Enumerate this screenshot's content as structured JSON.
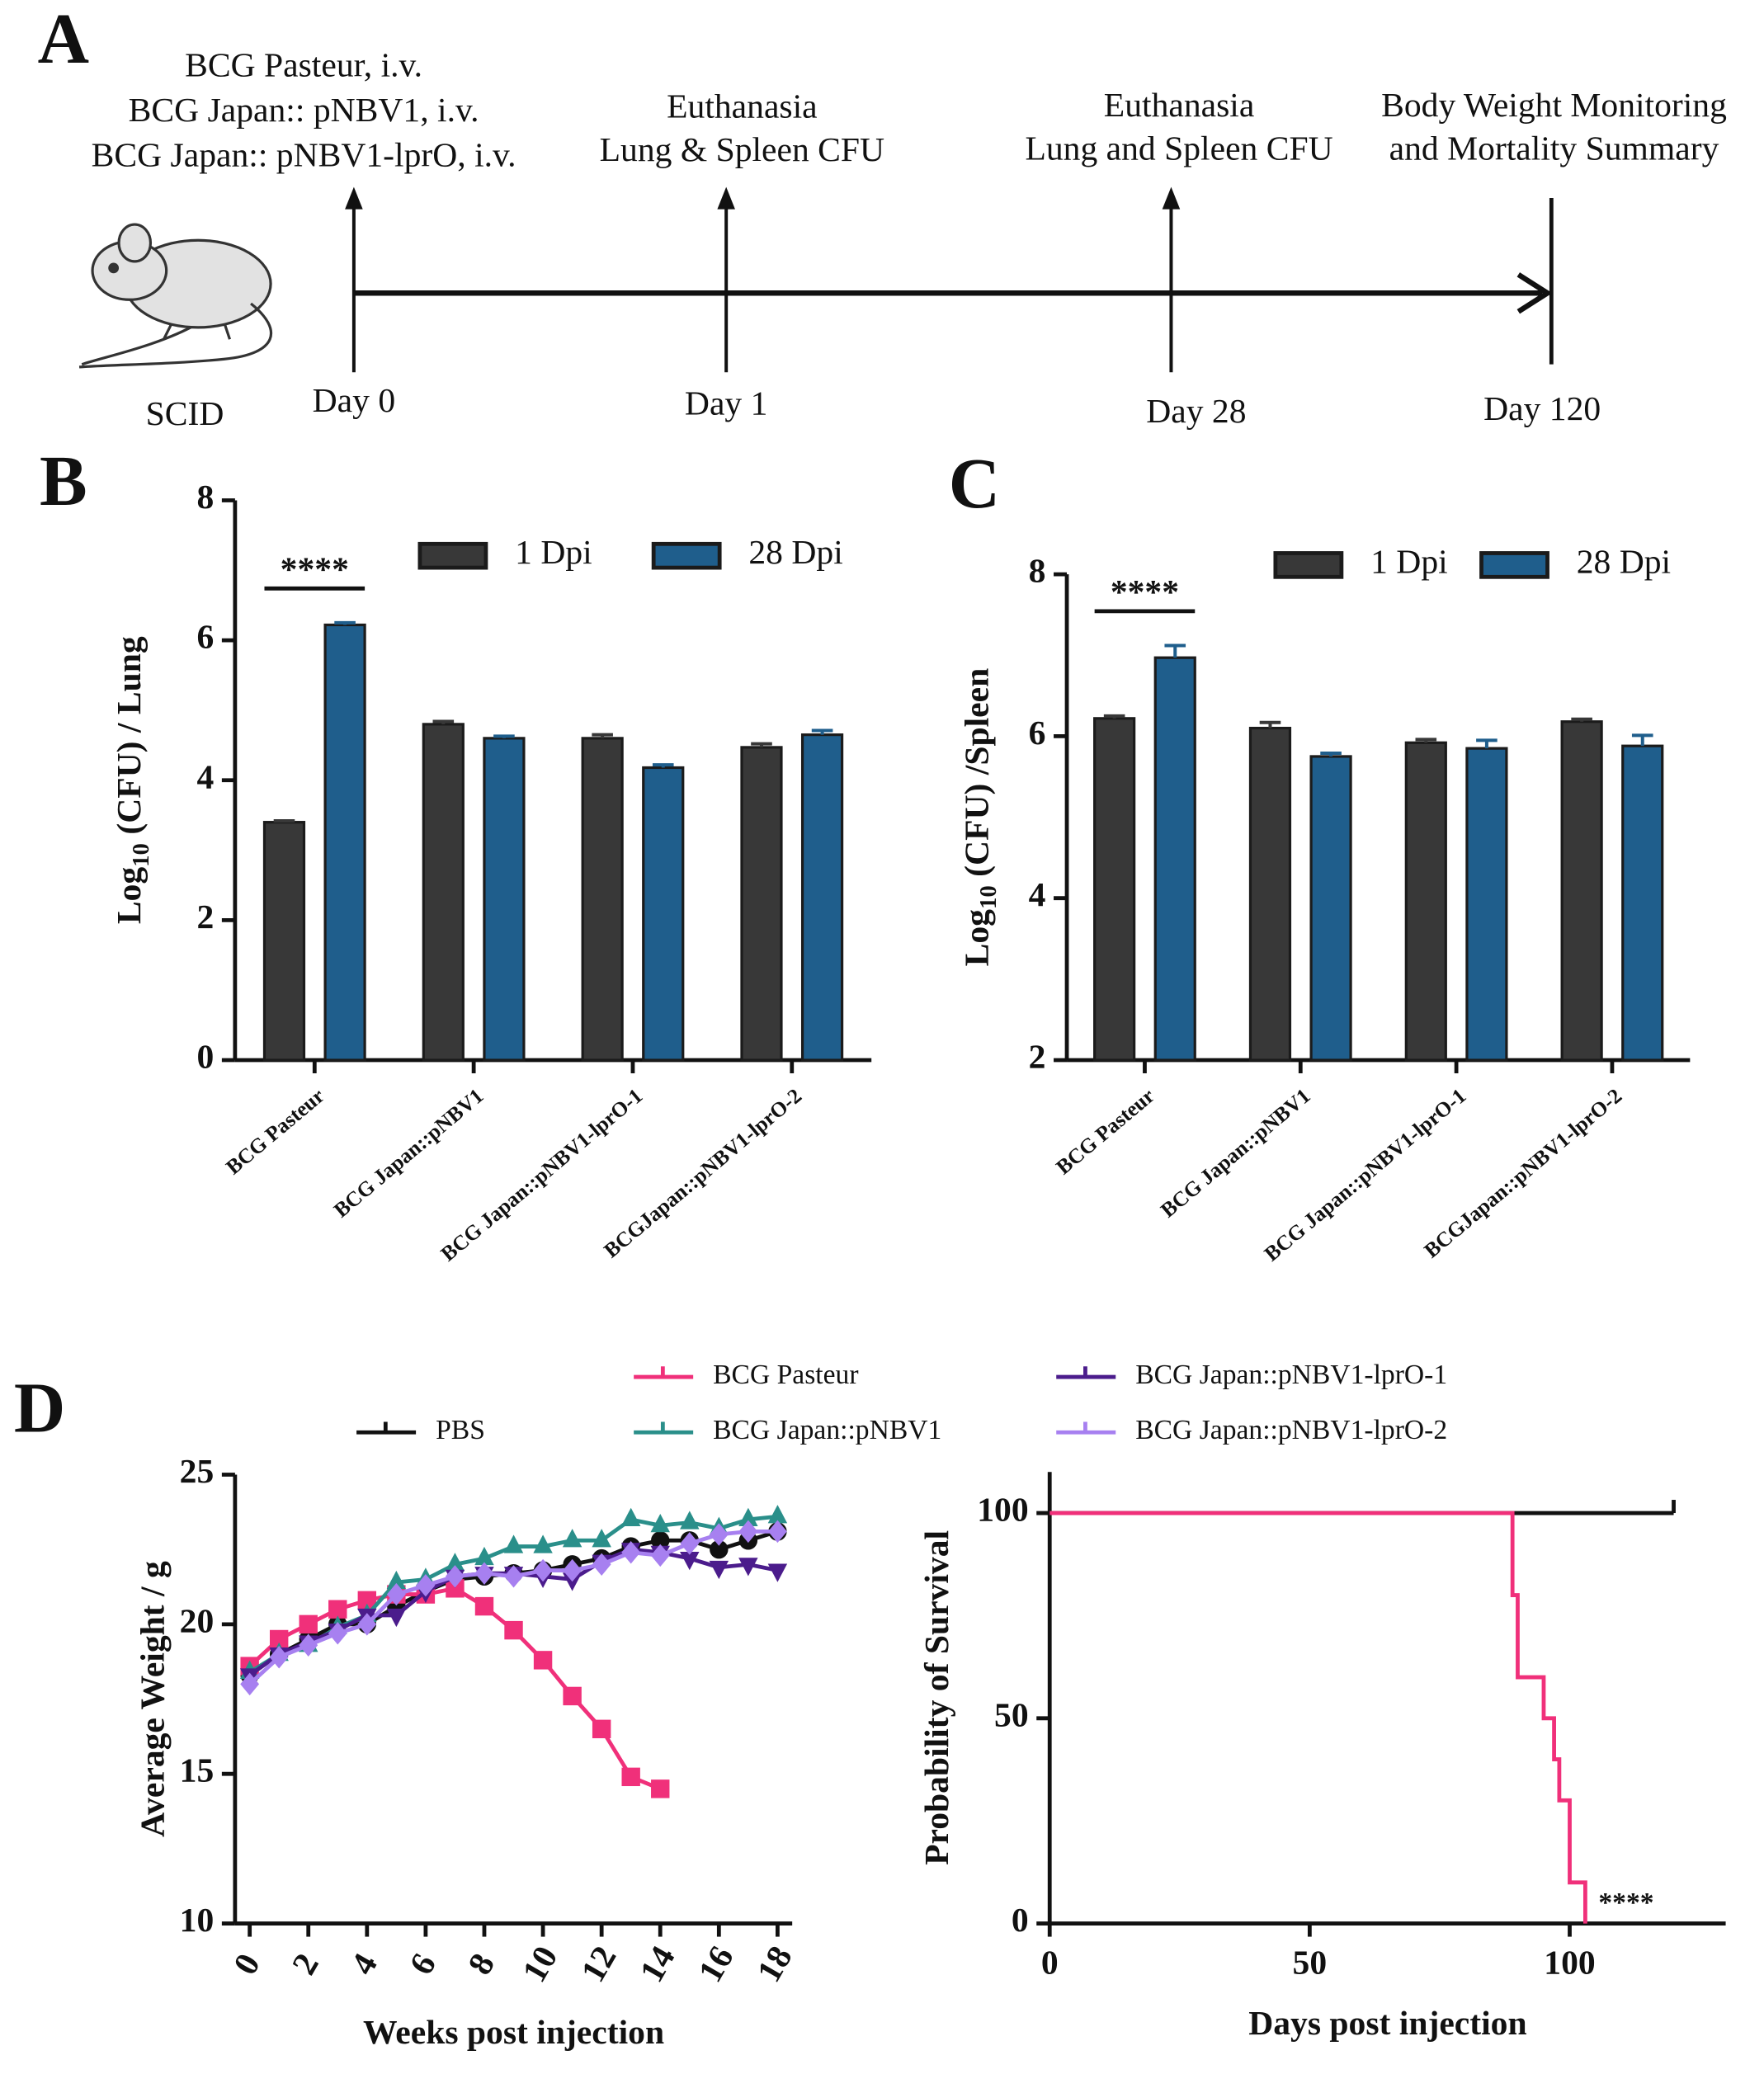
{
  "panel_labels": [
    "A",
    "B",
    "C",
    "D"
  ],
  "timeline": {
    "subject": "SCID",
    "treatments": [
      "BCG Pasteur, i.v.",
      "BCG Japan:: pNBV1, i.v.",
      "BCG Japan:: pNBV1-lprO, i.v."
    ],
    "events": [
      {
        "day": "Day 0"
      },
      {
        "lines": [
          "Euthanasia",
          "Lung & Spleen CFU"
        ],
        "day": "Day 1"
      },
      {
        "lines": [
          "Euthanasia",
          "Lung and Spleen CFU"
        ],
        "day": "Day 28"
      },
      {
        "lines": [
          "Body Weight Monitoring",
          "and Mortality Summary"
        ],
        "day": "Day 120"
      }
    ]
  },
  "chart_data": [
    {
      "type": "bar",
      "ylabel": {
        "main": "Log",
        "sub": "10",
        "rest": " (CFU) / Lung"
      },
      "categories": [
        "BCG Pasteur",
        "BCG Japan::pNBV1",
        "BCG Japan::pNBV1-lprO-1",
        "BCGJapan::pNBV1-lprO-2"
      ],
      "series": [
        {
          "name": "1 Dpi",
          "color": "#383838",
          "values": [
            3.4,
            4.8,
            4.6,
            4.47
          ],
          "errors": [
            0.02,
            0.04,
            0.05,
            0.05
          ]
        },
        {
          "name": "28 Dpi",
          "color": "#1f5e8c",
          "values": [
            6.22,
            4.6,
            4.18,
            4.65
          ],
          "errors": [
            0.03,
            0.03,
            0.04,
            0.06
          ]
        }
      ],
      "ylim": [
        0,
        8
      ],
      "yticks": [
        0,
        2,
        4,
        6,
        8
      ],
      "annotation": "****",
      "legend": "top-right"
    },
    {
      "type": "bar",
      "ylabel": {
        "main": "Log",
        "sub": "10",
        "rest": " (CFU) /Spleen"
      },
      "categories": [
        "BCG Pasteur",
        "BCG Japan::pNBV1",
        "BCG Japan::pNBV1-lprO-1",
        "BCGJapan::pNBV1-lprO-2"
      ],
      "series": [
        {
          "name": "1 Dpi",
          "color": "#383838",
          "values": [
            6.22,
            6.1,
            5.92,
            6.18
          ],
          "errors": [
            0.03,
            0.07,
            0.04,
            0.03
          ]
        },
        {
          "name": "28 Dpi",
          "color": "#1f5e8c",
          "values": [
            6.97,
            5.75,
            5.85,
            5.88
          ],
          "errors": [
            0.15,
            0.04,
            0.1,
            0.13
          ]
        }
      ],
      "ylim": [
        2,
        8
      ],
      "yticks": [
        2,
        4,
        6,
        8
      ],
      "annotation": "****",
      "legend": "top-right"
    },
    {
      "type": "line",
      "xlabel": "Weeks post injection",
      "ylabel": "Average Weight / g",
      "x": [
        0,
        1,
        2,
        3,
        4,
        5,
        6,
        7,
        8,
        9,
        10,
        11,
        12,
        13,
        14,
        15,
        16,
        17,
        18
      ],
      "series": [
        {
          "name": "PBS",
          "color": "#111111",
          "marker": "circle",
          "values": [
            18.3,
            19.0,
            19.5,
            20.0,
            20.0,
            20.6,
            21.1,
            21.5,
            21.6,
            21.7,
            21.8,
            22.0,
            22.2,
            22.6,
            22.8,
            22.8,
            22.5,
            22.8,
            23.1
          ]
        },
        {
          "name": "BCG Pasteur",
          "color": "#f0307a",
          "marker": "square",
          "values": [
            18.6,
            19.5,
            20.0,
            20.5,
            20.8,
            21.0,
            21.0,
            21.2,
            20.6,
            19.8,
            18.8,
            17.6,
            16.5,
            14.9,
            14.5,
            null,
            null,
            null,
            null
          ]
        },
        {
          "name": "BCG Japan::pNBV1",
          "color": "#2a8f8a",
          "marker": "triangle",
          "values": [
            18.4,
            19.0,
            19.3,
            19.9,
            20.3,
            21.4,
            21.5,
            22.0,
            22.2,
            22.6,
            22.6,
            22.8,
            22.8,
            23.5,
            23.3,
            23.4,
            23.2,
            23.5,
            23.6
          ]
        },
        {
          "name": "BCG Japan::pNBV1-lprO-1",
          "color": "#4b1c8c",
          "marker": "triangle-down",
          "values": [
            18.3,
            19.0,
            19.4,
            19.8,
            20.3,
            20.3,
            21.1,
            21.6,
            21.7,
            21.7,
            21.6,
            21.5,
            22.1,
            22.5,
            22.4,
            22.2,
            21.9,
            22.0,
            21.8
          ]
        },
        {
          "name": "BCG Japan::pNBV1-lprO-2",
          "color": "#a780f0",
          "marker": "diamond",
          "values": [
            18.0,
            18.9,
            19.3,
            19.7,
            20.0,
            21.0,
            21.3,
            21.6,
            21.7,
            21.6,
            21.8,
            21.8,
            22.0,
            22.4,
            22.3,
            22.7,
            23.0,
            23.1,
            23.1
          ]
        }
      ],
      "xlim": [
        -0.5,
        18.5
      ],
      "xticks": [
        0,
        2,
        4,
        6,
        8,
        10,
        12,
        14,
        16,
        18
      ],
      "ylim": [
        10,
        25
      ],
      "yticks": [
        10,
        15,
        20,
        25
      ],
      "legend": "top"
    },
    {
      "type": "survival",
      "xlabel": "Days post injection",
      "ylabel": "Probability of Survival",
      "series": [
        {
          "color": "#111111",
          "x": [
            0,
            120
          ],
          "values": [
            100,
            100
          ]
        },
        {
          "color": "#f0307a",
          "x": [
            0,
            89,
            90,
            95,
            97,
            98,
            100,
            103
          ],
          "values": [
            100,
            80,
            60,
            50,
            40,
            30,
            10,
            0
          ]
        }
      ],
      "xlim": [
        0,
        130
      ],
      "xticks": [
        0,
        50,
        100
      ],
      "ylim": [
        0,
        110
      ],
      "yticks": [
        0,
        50,
        100
      ],
      "annotation": "****"
    }
  ]
}
